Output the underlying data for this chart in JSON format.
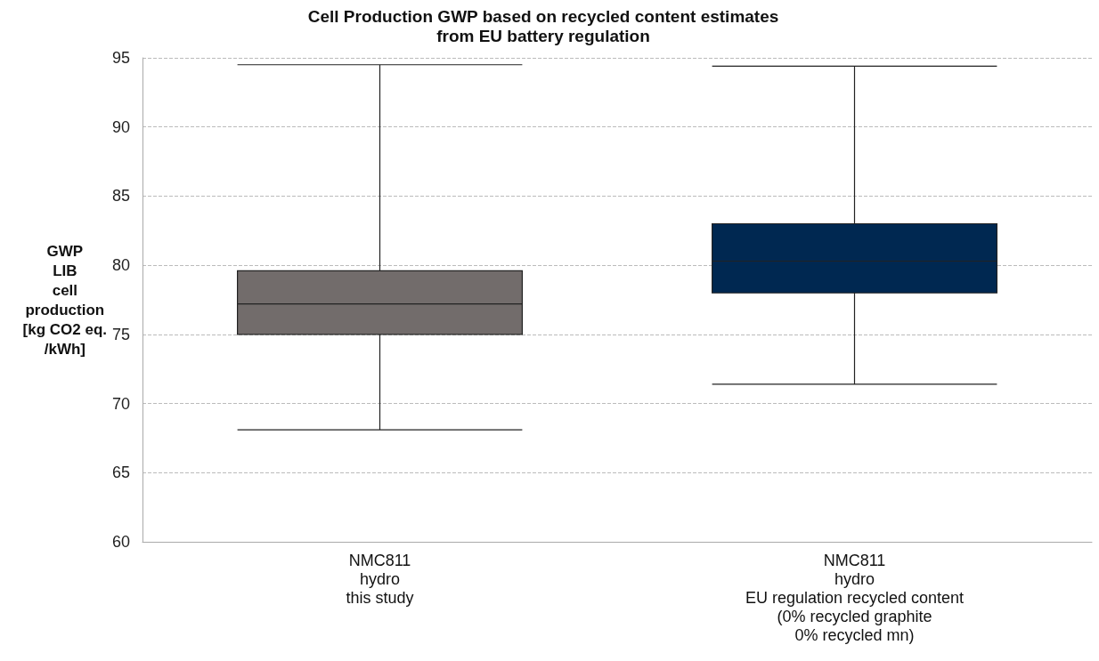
{
  "chart_data": {
    "type": "box",
    "title": "Cell Production GWP based on recycled content estimates\nfrom EU battery regulation",
    "ylabel": "GWP\nLIB\ncell\nproduction\n[kg CO2 eq.\n/kWh]",
    "categories": [
      "NMC811\nhydro\nthis study",
      "NMC811\nhydro\nEU regulation recycled content\n(0% recycled graphite\n0% recycled mn)"
    ],
    "boxes": [
      {
        "low": 68.1,
        "q1": 75,
        "median": 77.2,
        "q3": 79.6,
        "high": 94.5
      },
      {
        "low": 71.4,
        "q1": 78,
        "median": 80.3,
        "q3": 83,
        "high": 94.4
      }
    ],
    "colors": [
      "#726c6b",
      "#002851"
    ],
    "ylim": [
      60,
      95
    ],
    "yticks": [
      60,
      65,
      70,
      75,
      80,
      85,
      90,
      95
    ],
    "grid": "y"
  }
}
